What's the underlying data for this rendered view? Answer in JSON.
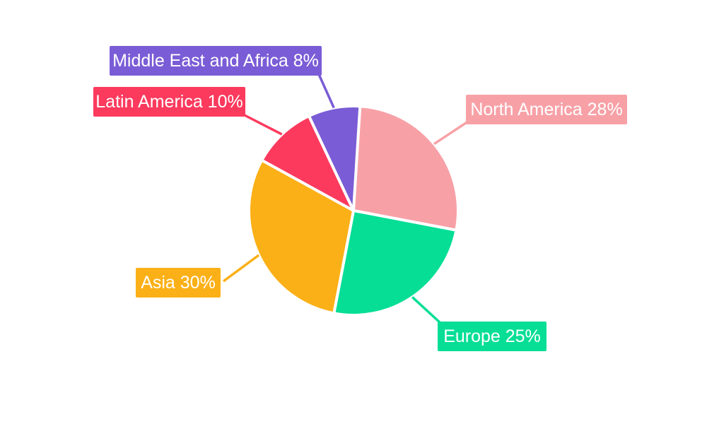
{
  "chart_data": {
    "type": "pie",
    "title": "",
    "background": "#ffffff",
    "label_text_color": "#ffffff",
    "start_angle_deg": -90,
    "direction": "clockwise",
    "slices": [
      {
        "name": "North America",
        "value": 28,
        "display": "North America 28%",
        "color": "#F7A1A7"
      },
      {
        "name": "Europe",
        "value": 25,
        "display": "Europe 25%",
        "color": "#06DE96"
      },
      {
        "name": "Asia",
        "value": 30,
        "display": "Asia 30%",
        "color": "#FBB017"
      },
      {
        "name": "Latin America",
        "value": 10,
        "display": "Latin America 10%",
        "color": "#FB3A5D"
      },
      {
        "name": "Middle East and Africa",
        "value": 8,
        "display": "Middle East and Africa 8%",
        "color": "#7A5CD6"
      }
    ]
  }
}
